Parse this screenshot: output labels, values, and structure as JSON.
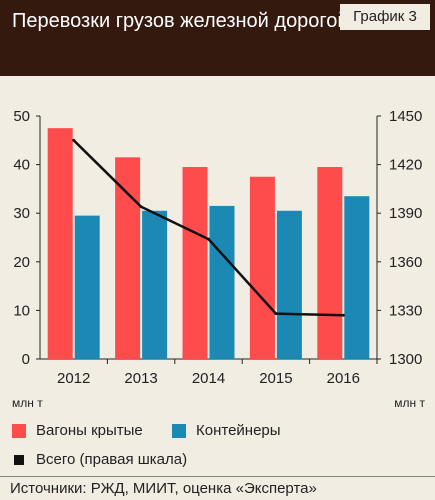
{
  "header": {
    "title": "Перевозки грузов железной дорогой",
    "chart_number": "График 3"
  },
  "colors": {
    "header_bg": "#34190f",
    "background": "#f2ede2",
    "covered_wagons": "#fe4c4c",
    "containers": "#1c89b5",
    "total_line": "#111111"
  },
  "chart_data": {
    "type": "bar",
    "categories": [
      "2012",
      "2013",
      "2014",
      "2015",
      "2016"
    ],
    "series": [
      {
        "name": "Вагоны крытые",
        "axis": "left",
        "values": [
          47.5,
          41.5,
          39.5,
          37.5,
          39.5
        ]
      },
      {
        "name": "Контейнеры",
        "axis": "left",
        "values": [
          29.5,
          30.5,
          31.5,
          30.5,
          33.5
        ]
      },
      {
        "name": "Всего (правая шкала)",
        "axis": "right",
        "type": "line",
        "values": [
          1435,
          1394,
          1374,
          1328,
          1327
        ]
      }
    ],
    "left_axis": {
      "ylim": [
        0,
        50
      ],
      "ticks": [
        0,
        10,
        20,
        30,
        40,
        50
      ],
      "unit": "млн т"
    },
    "right_axis": {
      "ylim": [
        1300,
        1450
      ],
      "ticks": [
        1300,
        1330,
        1360,
        1390,
        1420,
        1450
      ],
      "unit": "млн т"
    },
    "grid": false,
    "legend_position": "bottom"
  },
  "legend": [
    {
      "label": "Вагоны крытые"
    },
    {
      "label": "Контейнеры"
    },
    {
      "label": "Всего (правая шкала)"
    }
  ],
  "source": "Источники: РЖД, МИИТ, оценка «Эксперта»"
}
